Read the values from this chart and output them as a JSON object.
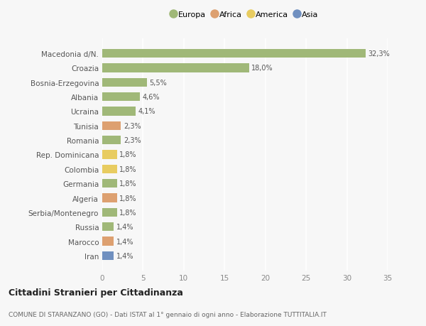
{
  "categories": [
    "Iran",
    "Marocco",
    "Russia",
    "Serbia/Montenegro",
    "Algeria",
    "Germania",
    "Colombia",
    "Rep. Dominicana",
    "Romania",
    "Tunisia",
    "Ucraina",
    "Albania",
    "Bosnia-Erzegovina",
    "Croazia",
    "Macedonia d/N."
  ],
  "values": [
    1.4,
    1.4,
    1.4,
    1.8,
    1.8,
    1.8,
    1.8,
    1.8,
    2.3,
    2.3,
    4.1,
    4.6,
    5.5,
    18.0,
    32.3
  ],
  "labels": [
    "1,4%",
    "1,4%",
    "1,4%",
    "1,8%",
    "1,8%",
    "1,8%",
    "1,8%",
    "1,8%",
    "2,3%",
    "2,3%",
    "4,1%",
    "4,6%",
    "5,5%",
    "18,0%",
    "32,3%"
  ],
  "colors": [
    "#7090c0",
    "#dda070",
    "#a0b878",
    "#a0b878",
    "#dda070",
    "#a0b878",
    "#e8cc60",
    "#e8cc60",
    "#a0b878",
    "#dda070",
    "#a0b878",
    "#a0b878",
    "#a0b878",
    "#a0b878",
    "#a0b878"
  ],
  "legend_labels": [
    "Europa",
    "Africa",
    "America",
    "Asia"
  ],
  "legend_colors": [
    "#a0b878",
    "#dda070",
    "#e8cc60",
    "#7090c0"
  ],
  "xlim": [
    0,
    35
  ],
  "xticks": [
    0,
    5,
    10,
    15,
    20,
    25,
    30,
    35
  ],
  "title_bold": "Cittadini Stranieri per Cittadinanza",
  "subtitle": "COMUNE DI STARANZANO (GO) - Dati ISTAT al 1° gennaio di ogni anno - Elaborazione TUTTITALIA.IT",
  "background_color": "#f7f7f7",
  "grid_color": "#ffffff",
  "bar_height": 0.6
}
